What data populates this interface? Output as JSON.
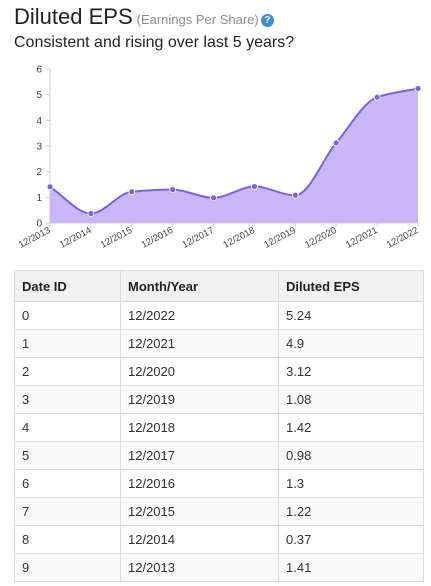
{
  "header": {
    "title": "Diluted EPS",
    "subtitle": "(Earnings Per Share)",
    "help_icon": "question-icon",
    "tagline": "Consistent and rising over last 5 years?"
  },
  "colors": {
    "line": "#7b62e6",
    "fill": "#c8b8f8",
    "point": "#7b62e6",
    "help": "#3b8fd8"
  },
  "chart_data": {
    "type": "area",
    "categories": [
      "12/2013",
      "12/2014",
      "12/2015",
      "12/2016",
      "12/2017",
      "12/2018",
      "12/2019",
      "12/2020",
      "12/2021",
      "12/2022"
    ],
    "values": [
      1.41,
      0.37,
      1.22,
      1.3,
      0.98,
      1.42,
      1.08,
      3.12,
      4.9,
      5.24
    ],
    "yticks": [
      0,
      1,
      2,
      3,
      4,
      5,
      6
    ],
    "ylim": [
      0,
      6
    ],
    "title": "",
    "xlabel": "",
    "ylabel": "",
    "grid": false,
    "smooth": true
  },
  "table": {
    "headers": [
      "Date ID",
      "Month/Year",
      "Diluted EPS"
    ],
    "rows": [
      [
        "0",
        "12/2022",
        "5.24"
      ],
      [
        "1",
        "12/2021",
        "4.9"
      ],
      [
        "2",
        "12/2020",
        "3.12"
      ],
      [
        "3",
        "12/2019",
        "1.08"
      ],
      [
        "4",
        "12/2018",
        "1.42"
      ],
      [
        "5",
        "12/2017",
        "0.98"
      ],
      [
        "6",
        "12/2016",
        "1.3"
      ],
      [
        "7",
        "12/2015",
        "1.22"
      ],
      [
        "8",
        "12/2014",
        "0.37"
      ],
      [
        "9",
        "12/2013",
        "1.41"
      ]
    ]
  }
}
